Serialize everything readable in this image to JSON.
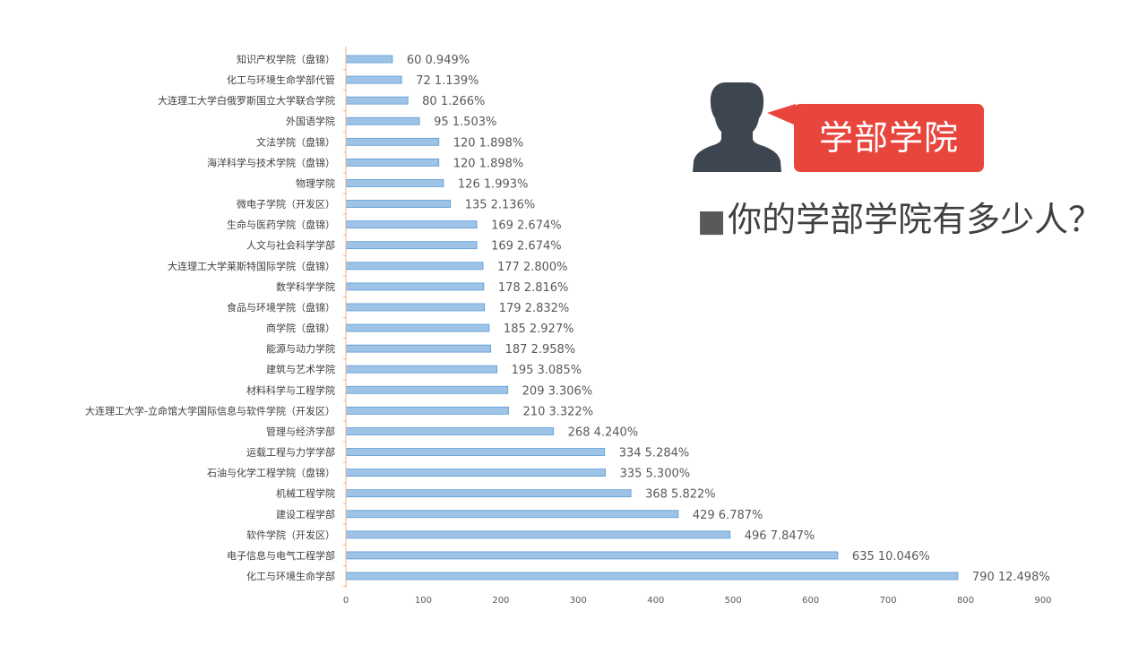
{
  "callout": {
    "label": "学部学院",
    "color": "#E8453C"
  },
  "question": {
    "bullet": "■",
    "text": "你的学部学院有多少人？"
  },
  "icons": {
    "person": "person-silhouette-icon"
  },
  "chart_data": {
    "type": "bar",
    "orientation": "horizontal",
    "bar_color": "#9DC3E6",
    "bar_border_color": "#5B9BD5",
    "axis_color": "#F4B183",
    "xlim": [
      0,
      900
    ],
    "x_ticks": [
      0,
      100,
      200,
      300,
      400,
      500,
      600,
      700,
      800,
      900
    ],
    "categories": [
      "知识产权学院（盘锦）",
      "化工与环境生命学部代管",
      "大连理工大学白俄罗斯国立大学联合学院",
      "外国语学院",
      "文法学院（盘锦）",
      "海洋科学与技术学院（盘锦）",
      "物理学院",
      "微电子学院（开发区）",
      "生命与医药学院（盘锦）",
      "人文与社会科学学部",
      "大连理工大学莱斯特国际学院（盘锦）",
      "数学科学学院",
      "食品与环境学院（盘锦）",
      "商学院（盘锦）",
      "能源与动力学院",
      "建筑与艺术学院",
      "材料科学与工程学院",
      "大连理工大学-立命馆大学国际信息与软件学院（开发区）",
      "管理与经济学部",
      "运载工程与力学学部",
      "石油与化学工程学院（盘锦）",
      "机械工程学院",
      "建设工程学部",
      "软件学院（开发区）",
      "电子信息与电气工程学部",
      "化工与环境生命学部"
    ],
    "values": [
      60,
      72,
      80,
      95,
      120,
      120,
      126,
      135,
      169,
      169,
      177,
      178,
      179,
      185,
      187,
      195,
      209,
      210,
      268,
      334,
      335,
      368,
      429,
      496,
      635,
      790
    ],
    "percentages": [
      "0.949%",
      "1.139%",
      "1.266%",
      "1.503%",
      "1.898%",
      "1.898%",
      "1.993%",
      "2.136%",
      "2.674%",
      "2.674%",
      "2.800%",
      "2.816%",
      "2.832%",
      "2.927%",
      "2.958%",
      "3.085%",
      "3.306%",
      "3.322%",
      "4.240%",
      "5.284%",
      "5.300%",
      "5.822%",
      "6.787%",
      "7.847%",
      "10.046%",
      "12.498%"
    ]
  }
}
